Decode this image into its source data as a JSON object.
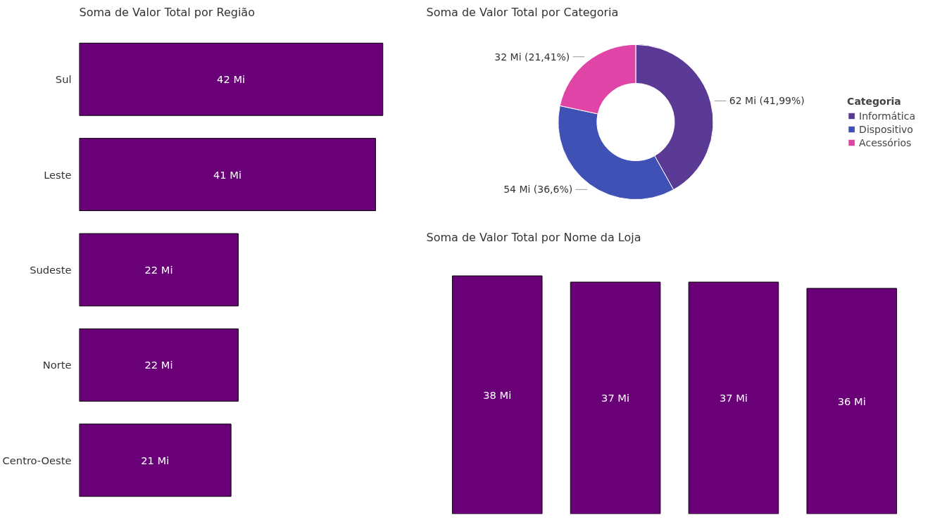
{
  "chart_data": [
    {
      "type": "bar",
      "orientation": "horizontal",
      "title": "Soma de Valor Total por Região",
      "categories": [
        "Sul",
        "Leste",
        "Sudeste",
        "Norte",
        "Centro-Oeste"
      ],
      "values": [
        42,
        41,
        22,
        22,
        21
      ],
      "value_labels": [
        "42 Mi",
        "41 Mi",
        "22 Mi",
        "22 Mi",
        "21 Mi"
      ],
      "color": "#6a0078"
    },
    {
      "type": "donut",
      "title": "Soma de Valor Total por Categoria",
      "categories": [
        "Informática",
        "Dispositivo",
        "Acessórios"
      ],
      "values": [
        62,
        54,
        32
      ],
      "value_labels": [
        "62 Mi (41,99%)",
        "54 Mi (36,6%)",
        "32 Mi (21,41%)"
      ],
      "colors": [
        "#5b3a96",
        "#3f51b5",
        "#e044a7"
      ],
      "legend": "right",
      "legend_title": "Categoria"
    },
    {
      "type": "bar",
      "title": "Soma de Valor Total por Nome da Loja",
      "categories": [
        null,
        null,
        null,
        null
      ],
      "values": [
        38,
        37,
        37,
        36
      ],
      "value_labels": [
        "38 Mi",
        "37 Mi",
        "37 Mi",
        "36 Mi"
      ],
      "color": "#6a0078"
    }
  ]
}
